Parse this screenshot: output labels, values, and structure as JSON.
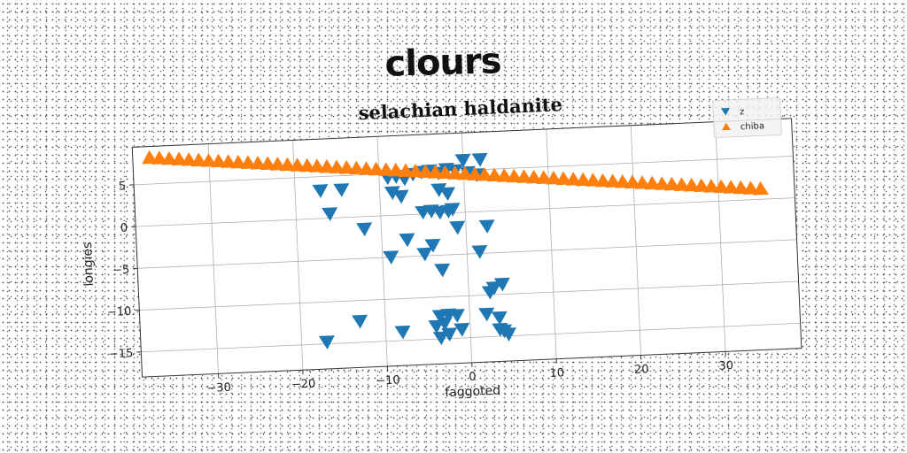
{
  "chart_data": {
    "type": "scatter",
    "suptitle": "clours",
    "title": "selachian haldanite",
    "xlabel": "faggoted",
    "ylabel": "longies",
    "xlim": [
      -39,
      39
    ],
    "ylim": [
      -18,
      9.5
    ],
    "xticks": [
      -30,
      -20,
      -10,
      0,
      10,
      20,
      30
    ],
    "yticks": [
      5,
      0,
      -5,
      -10,
      -15
    ],
    "xtick_labels": [
      "−30",
      "−20",
      "−10",
      "0",
      "10",
      "20",
      "30"
    ],
    "ytick_labels": [
      "5",
      "0",
      "−5",
      "−10",
      "−15"
    ],
    "grid": true,
    "legend_position": "top-right",
    "series": [
      {
        "name": "z",
        "marker": "triangle-down",
        "color": "#1f77b4",
        "points": [
          [
            0,
            6.2
          ],
          [
            2,
            6.2
          ],
          [
            -9,
            4.5
          ],
          [
            -8,
            4.6
          ],
          [
            -7,
            4.3
          ],
          [
            -6,
            4.8
          ],
          [
            -5,
            5.0
          ],
          [
            -4,
            5.1
          ],
          [
            -3,
            4.8
          ],
          [
            -2,
            5.2
          ],
          [
            -1,
            5.0
          ],
          [
            0.5,
            4.7
          ],
          [
            1.5,
            4.4
          ],
          [
            -17,
            3.3
          ],
          [
            -14.5,
            3.3
          ],
          [
            -8.5,
            2.7
          ],
          [
            -7.5,
            2.2
          ],
          [
            -3,
            2.8
          ],
          [
            -2,
            2.3
          ],
          [
            -16,
            0.5
          ],
          [
            -5,
            0.2
          ],
          [
            -4,
            0.3
          ],
          [
            -3,
            0.1
          ],
          [
            -2,
            0.2
          ],
          [
            -1.5,
            0.4
          ],
          [
            -12,
            -1.5
          ],
          [
            -1,
            -1.8
          ],
          [
            2.5,
            -1.8
          ],
          [
            -7,
            -3.0
          ],
          [
            -4,
            -3.8
          ],
          [
            -9,
            -5.0
          ],
          [
            -5,
            -4.8
          ],
          [
            1.5,
            -4.8
          ],
          [
            -3,
            -6.8
          ],
          [
            4,
            -8.8
          ],
          [
            3,
            -9.2
          ],
          [
            2.5,
            -9.7
          ],
          [
            -13,
            -12.5
          ],
          [
            -3.5,
            -12.3
          ],
          [
            -2.5,
            -12.2
          ],
          [
            -1.5,
            -12.3
          ],
          [
            2,
            -12.3
          ],
          [
            3.5,
            -12.8
          ],
          [
            -4,
            -13.5
          ],
          [
            -3,
            -13.2
          ],
          [
            -8,
            -14.0
          ],
          [
            -1,
            -14.0
          ],
          [
            3.5,
            -14.2
          ],
          [
            4,
            -14.4
          ],
          [
            -17,
            -14.8
          ],
          [
            -3.5,
            -14.9
          ],
          [
            4.5,
            -14.8
          ],
          [
            -2.5,
            -14.5
          ]
        ]
      },
      {
        "name": "chiba",
        "marker": "triangle-up",
        "color": "#ff7f0e",
        "line_from": [
          -37,
          8.2
        ],
        "line_to": [
          35,
          1.3
        ],
        "count": 63
      }
    ]
  }
}
